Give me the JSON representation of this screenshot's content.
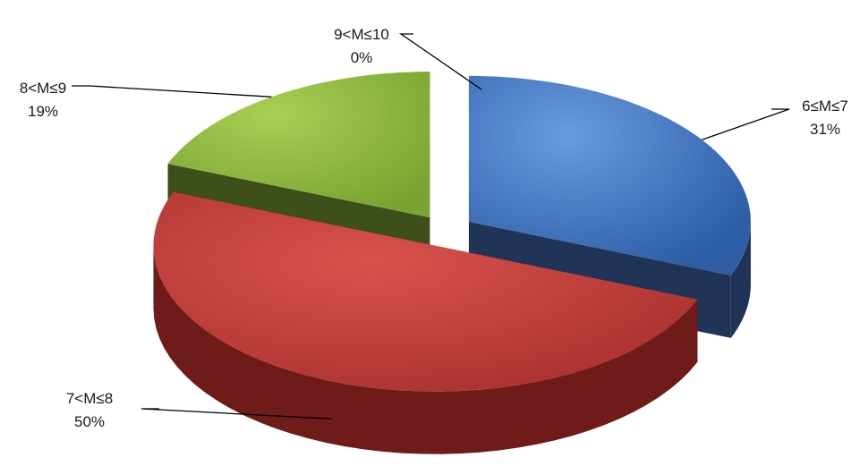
{
  "chart_data": {
    "type": "pie",
    "style": "3d-exploded",
    "legend": "none",
    "slices": [
      {
        "label": "6≤M≤7",
        "value": 31,
        "percent_label": "31%",
        "color": "#3d6fb8",
        "side_color": "#1f3457"
      },
      {
        "label": "7<M≤8",
        "value": 50,
        "percent_label": "50%",
        "color": "#c0403c",
        "side_color": "#6e1b1a"
      },
      {
        "label": "8<M≤9",
        "value": 19,
        "percent_label": "19%",
        "color": "#8db73e",
        "side_color": "#3f4f1a"
      },
      {
        "label": "9<M≤10",
        "value": 0,
        "percent_label": "0%",
        "color": "#7f5fa8",
        "side_color": "#3f2f57"
      }
    ]
  }
}
